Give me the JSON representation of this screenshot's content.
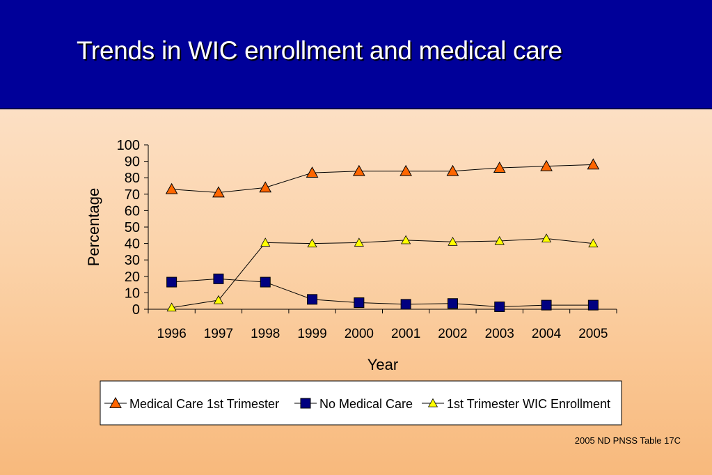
{
  "slide": {
    "title": "Trends in WIC enrollment and medical care",
    "source_note": "2005 ND PNSS Table 17C"
  },
  "colors": {
    "header_bg": "#000099",
    "medical_care": "#ff6600",
    "no_medical_care": "#000080",
    "wic_enrollment": "#ffff00"
  },
  "chart_data": {
    "type": "line",
    "xlabel": "Year",
    "ylabel": "Percentage",
    "ylim": [
      0,
      100
    ],
    "yticks": [
      "0",
      "10",
      "20",
      "30",
      "40",
      "50",
      "60",
      "70",
      "80",
      "90",
      "100"
    ],
    "categories": [
      "1996",
      "1997",
      "1998",
      "1999",
      "2000",
      "2001",
      "2002",
      "2003",
      "2004",
      "2005"
    ],
    "grid": false,
    "legend_position": "bottom",
    "series": [
      {
        "name": "Medical Care 1st Trimester",
        "marker": "triangle",
        "color": "#ff6600",
        "values": [
          73,
          71,
          74,
          83,
          84,
          84,
          84,
          86,
          87,
          88
        ]
      },
      {
        "name": "No Medical Care",
        "marker": "square",
        "color": "#000080",
        "values": [
          16.5,
          18.5,
          16.5,
          6,
          4,
          3,
          3.5,
          1.5,
          2.5,
          2.5
        ]
      },
      {
        "name": "1st Trimester WIC Enrollment",
        "marker": "triangle",
        "color": "#ffff00",
        "values": [
          1,
          5.5,
          40.5,
          40,
          40.5,
          42,
          41,
          41.5,
          43,
          40
        ]
      }
    ]
  }
}
